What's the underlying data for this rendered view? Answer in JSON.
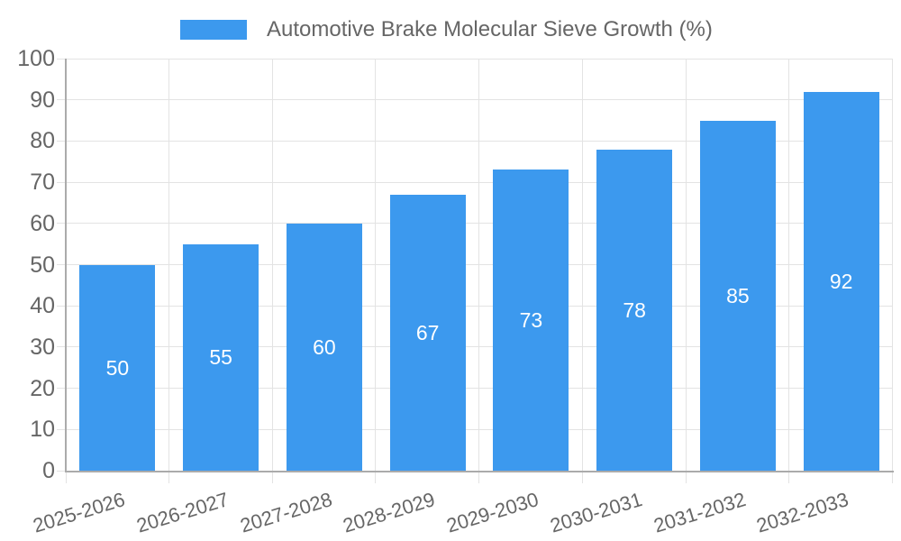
{
  "legend": {
    "label": "Automotive Brake Molecular Sieve Growth (%)"
  },
  "chart_data": {
    "type": "bar",
    "title": "Automotive Brake Molecular Sieve Growth (%)",
    "categories": [
      "2025-2026",
      "2026-2027",
      "2027-2028",
      "2028-2029",
      "2029-2030",
      "2030-2031",
      "2031-2032",
      "2032-2033"
    ],
    "values": [
      50,
      55,
      60,
      67,
      73,
      78,
      85,
      92
    ],
    "series": [
      {
        "name": "Automotive Brake Molecular Sieve Growth (%)",
        "values": [
          50,
          55,
          60,
          67,
          73,
          78,
          85,
          92
        ]
      }
    ],
    "xlabel": "",
    "ylabel": "",
    "ylim": [
      0,
      100
    ],
    "ytick_step": 10,
    "yticks": [
      0,
      10,
      20,
      30,
      40,
      50,
      60,
      70,
      80,
      90,
      100
    ],
    "grid": true,
    "legend_position": "top",
    "value_labels": "inside-middle",
    "xtick_rotation_deg": -17,
    "colors": {
      "bar": "#3c99ee",
      "grid": "#e3e3e3",
      "axis": "#ababab",
      "text": "#666666",
      "value_label": "#ffffff",
      "background": "#ffffff"
    }
  }
}
